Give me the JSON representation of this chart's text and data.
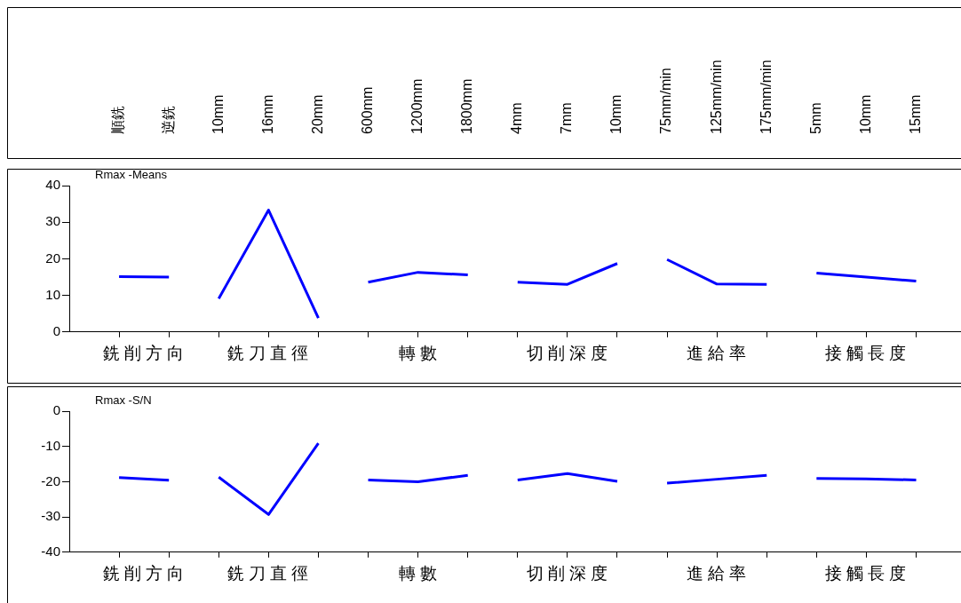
{
  "chart_data": [
    {
      "type": "line",
      "title": "Rmax -Means",
      "categories": [
        "順銑",
        "逆銑",
        "10mm",
        "16mm",
        "20mm",
        "600mm",
        "1200mm",
        "1800mm",
        "4mm",
        "7mm",
        "10mm",
        "75mm/min",
        "125mm/min",
        "175mm/min",
        "5mm",
        "10mm",
        "15mm"
      ],
      "series": [
        {
          "color": "#0000ff",
          "values": [
            15.1,
            15.0,
            null,
            null,
            null,
            null,
            null,
            null,
            null,
            null,
            null,
            null,
            null,
            null,
            null,
            null,
            null
          ]
        },
        {
          "color": "#0000ff",
          "values": [
            null,
            null,
            9.1,
            33.3,
            3.8,
            null,
            null,
            null,
            null,
            null,
            null,
            null,
            null,
            null,
            null,
            null,
            null
          ]
        },
        {
          "color": "#0000ff",
          "values": [
            null,
            null,
            null,
            null,
            null,
            13.6,
            16.3,
            15.6,
            null,
            null,
            null,
            null,
            null,
            null,
            null,
            null,
            null
          ]
        },
        {
          "color": "#0000ff",
          "values": [
            null,
            null,
            null,
            null,
            null,
            null,
            null,
            null,
            13.6,
            13.0,
            18.7,
            null,
            null,
            null,
            null,
            null,
            null
          ]
        },
        {
          "color": "#0000ff",
          "values": [
            null,
            null,
            null,
            null,
            null,
            null,
            null,
            null,
            null,
            null,
            null,
            19.8,
            13.1,
            13.0,
            null,
            null,
            null
          ]
        },
        {
          "color": "#0000ff",
          "values": [
            null,
            null,
            null,
            null,
            null,
            null,
            null,
            null,
            null,
            null,
            null,
            null,
            null,
            null,
            16.1,
            15.0,
            13.9
          ]
        }
      ],
      "annotations": [
        "銑削方向",
        "銑刀直徑",
        "轉數",
        "切削深度",
        "進給率",
        "接觸長度"
      ],
      "ylim": [
        0,
        40
      ],
      "yticks": [
        0,
        10,
        20,
        30,
        40
      ],
      "marker": "none"
    },
    {
      "type": "line",
      "title": "Rmax -S/N",
      "categories": [
        null,
        null,
        null,
        null,
        null,
        null,
        null,
        null,
        null,
        null,
        null,
        null,
        null,
        null,
        null,
        null,
        null
      ],
      "series": [
        {
          "color": "#0000ff",
          "values": [
            -18.8,
            -19.6,
            null,
            null,
            null,
            null,
            null,
            null,
            null,
            null,
            null,
            null,
            null,
            null,
            null,
            null,
            null
          ]
        },
        {
          "color": "#0000ff",
          "values": [
            null,
            null,
            -18.7,
            -29.3,
            -9.1,
            null,
            null,
            null,
            null,
            null,
            null,
            null,
            null,
            null,
            null,
            null,
            null
          ]
        },
        {
          "color": "#0000ff",
          "values": [
            null,
            null,
            null,
            null,
            null,
            -19.5,
            -20.0,
            -18.2,
            null,
            null,
            null,
            null,
            null,
            null,
            null,
            null,
            null
          ]
        },
        {
          "color": "#0000ff",
          "values": [
            null,
            null,
            null,
            null,
            null,
            null,
            null,
            null,
            -19.5,
            -17.7,
            -19.9,
            null,
            null,
            null,
            null,
            null,
            null
          ]
        },
        {
          "color": "#0000ff",
          "values": [
            null,
            null,
            null,
            null,
            null,
            null,
            null,
            null,
            null,
            null,
            null,
            -20.4,
            -19.3,
            -18.2,
            null,
            null,
            null
          ]
        },
        {
          "color": "#0000ff",
          "values": [
            null,
            null,
            null,
            null,
            null,
            null,
            null,
            null,
            null,
            null,
            null,
            null,
            null,
            null,
            -19.1,
            -19.2,
            -19.5
          ]
        }
      ],
      "annotations": [
        "銑削方向",
        "銑刀直徑",
        "轉數",
        "切削深度",
        "進給率",
        "接觸長度"
      ],
      "ylim": [
        -40,
        0
      ],
      "yticks": [
        -40,
        -30,
        -20,
        -10,
        0
      ],
      "tick_labels": "y",
      "marker": "none"
    }
  ]
}
